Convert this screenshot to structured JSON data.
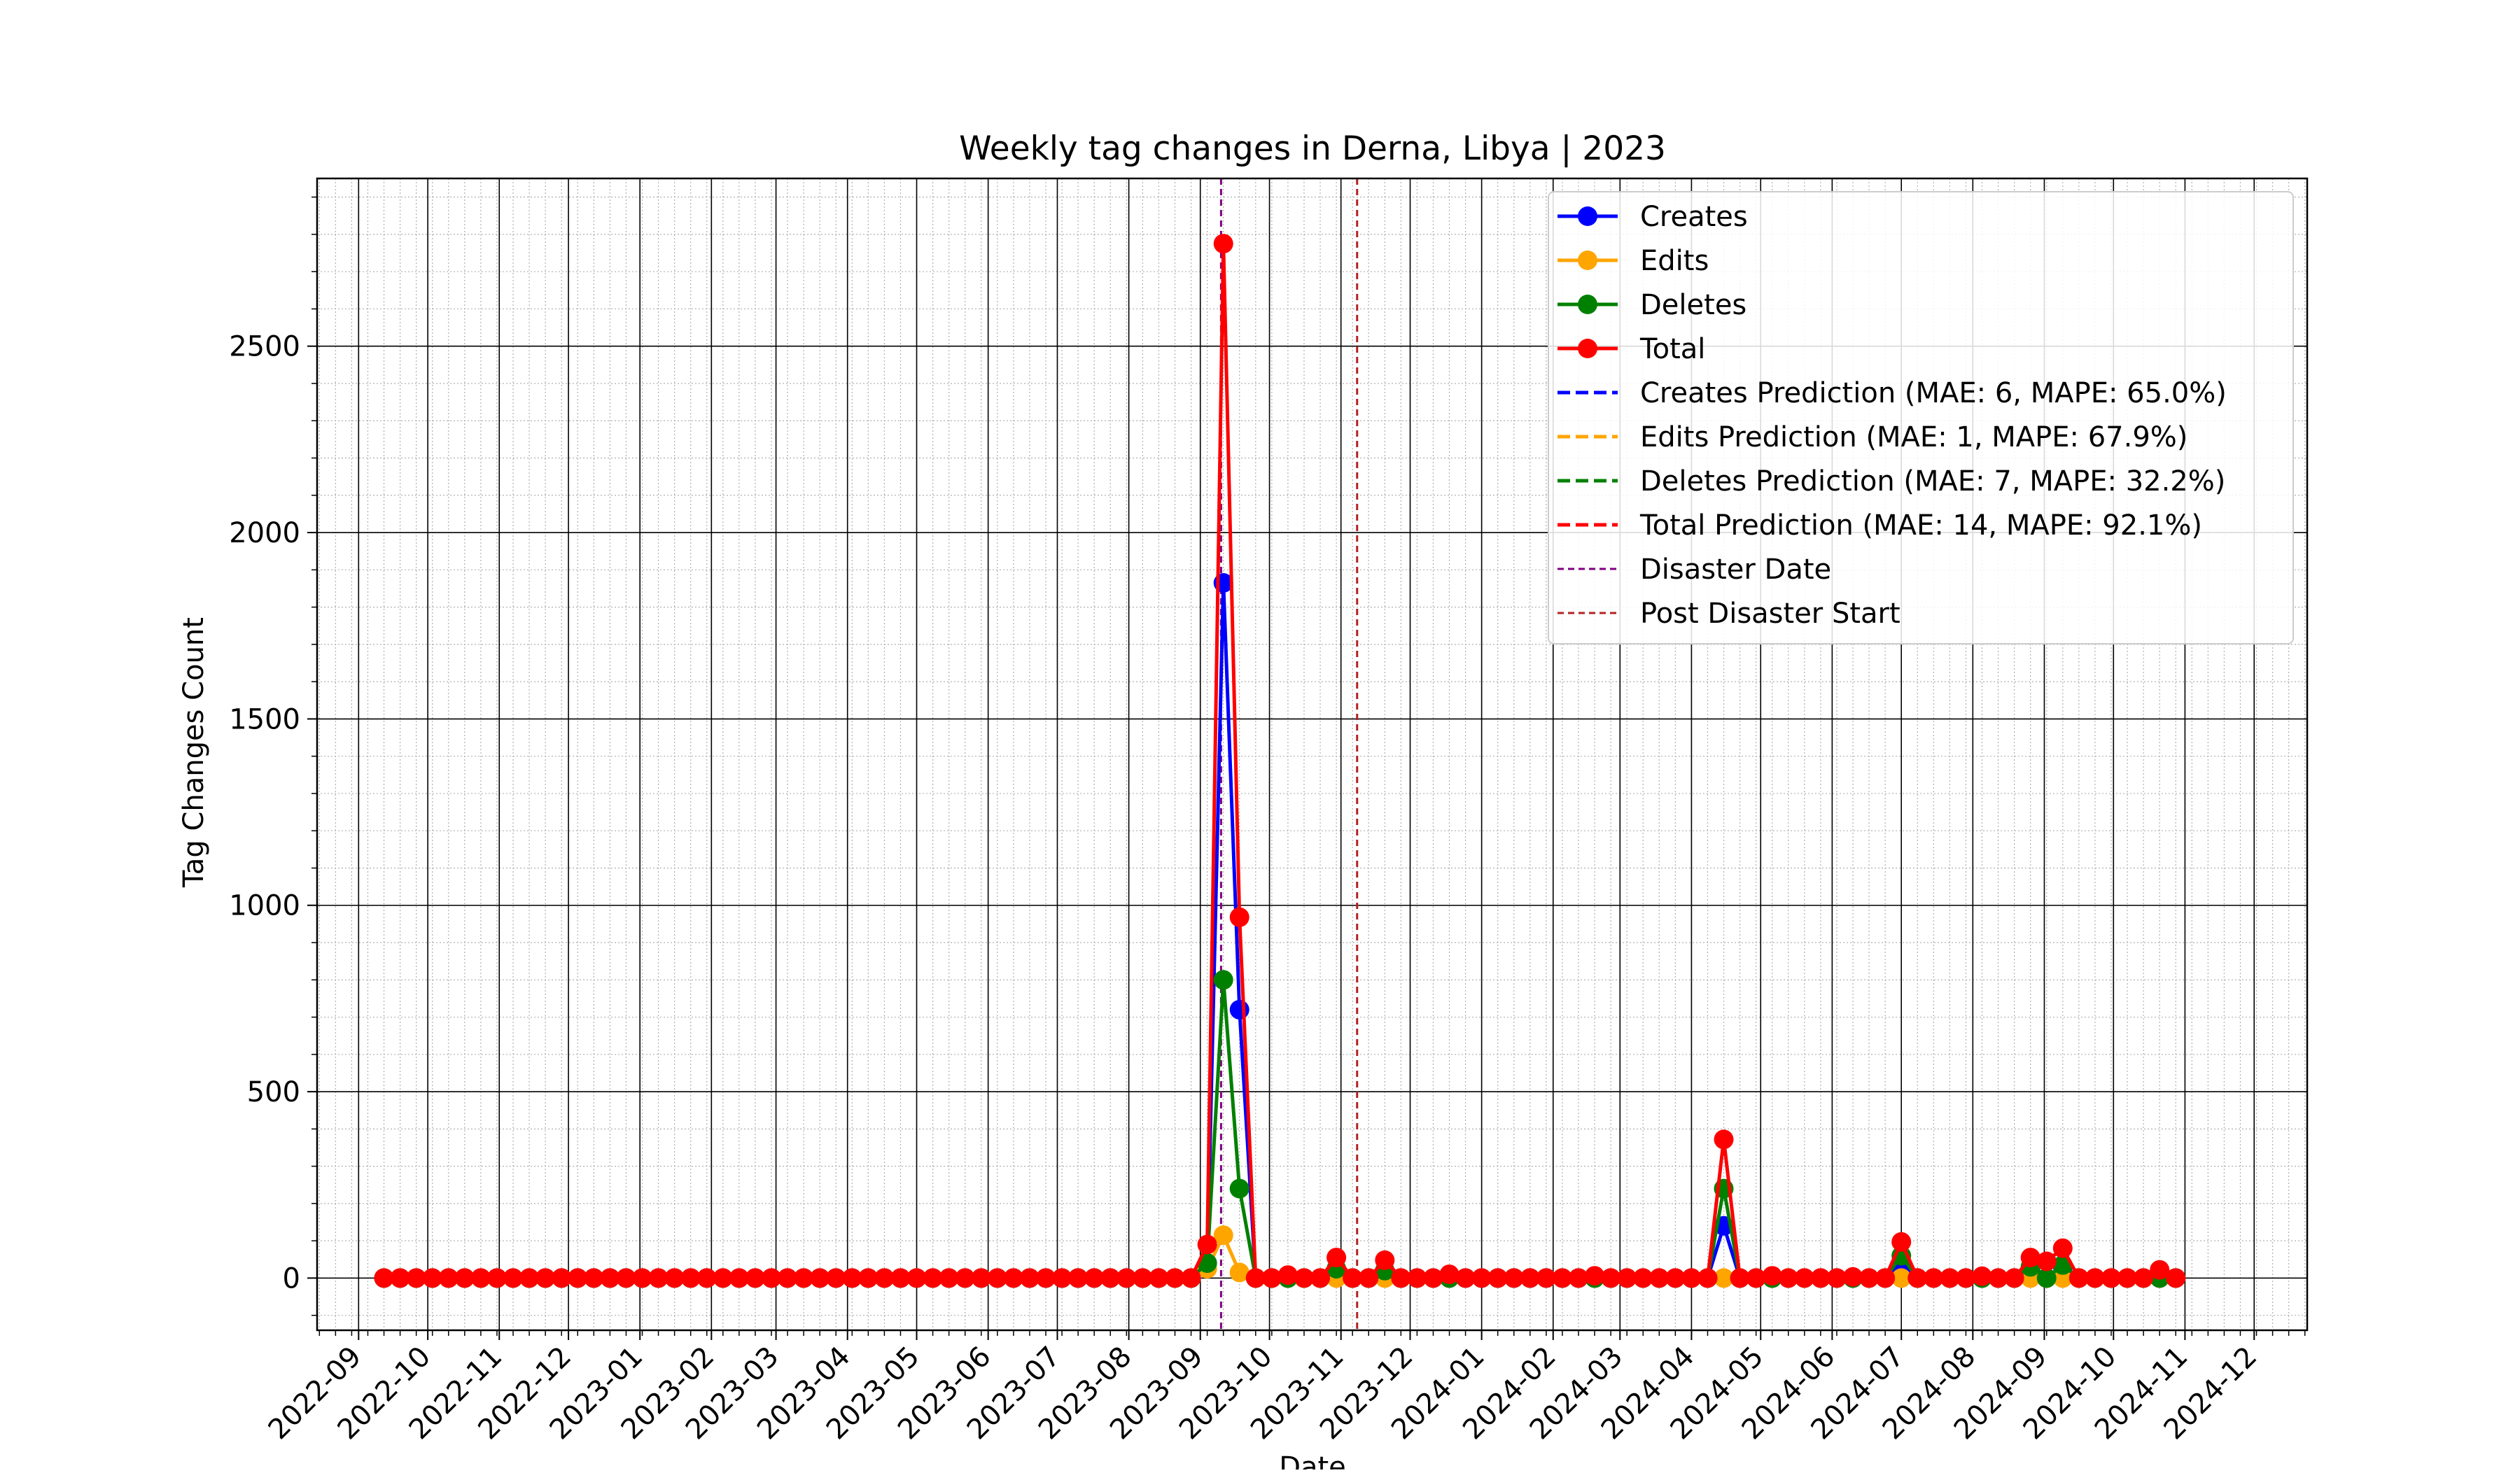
{
  "chart_data": {
    "type": "line",
    "title": "Weekly tag changes in Derna, Libya | 2023",
    "xlabel": "Date",
    "ylabel": "Tag Changes Count",
    "x_axis_type": "date",
    "xlim": [
      "2022-08-14",
      "2024-12-24"
    ],
    "ylim": [
      -140,
      2950
    ],
    "grid": "major and minor",
    "legend_position": "top-right",
    "x_tick_labels": [
      "2022-09",
      "2022-10",
      "2022-11",
      "2022-12",
      "2023-01",
      "2023-02",
      "2023-03",
      "2023-04",
      "2023-05",
      "2023-06",
      "2023-07",
      "2023-08",
      "2023-09",
      "2023-10",
      "2023-11",
      "2023-12",
      "2024-01",
      "2024-02",
      "2024-03",
      "2024-04",
      "2024-05",
      "2024-06",
      "2024-07",
      "2024-08",
      "2024-09",
      "2024-10",
      "2024-11",
      "2024-12"
    ],
    "y_ticks": [
      0,
      500,
      1000,
      1500,
      2000,
      2500
    ],
    "week_range": {
      "first": "2022-09-12",
      "last": "2024-10-28"
    },
    "series": [
      {
        "name": "Creates",
        "color": "#0000ff",
        "default": 0,
        "points": [
          [
            "2023-09-04",
            40
          ],
          [
            "2023-09-11",
            1865
          ],
          [
            "2023-09-18",
            720
          ],
          [
            "2023-10-30",
            20
          ],
          [
            "2023-11-20",
            20
          ],
          [
            "2024-04-15",
            140
          ],
          [
            "2024-07-01",
            40
          ],
          [
            "2024-08-26",
            20
          ],
          [
            "2024-09-09",
            30
          ]
        ]
      },
      {
        "name": "Edits",
        "color": "#ffa500",
        "default": 0,
        "points": [
          [
            "2023-09-04",
            25
          ],
          [
            "2023-09-11",
            115
          ],
          [
            "2023-09-18",
            15
          ]
        ]
      },
      {
        "name": "Deletes",
        "color": "#008000",
        "default": 0,
        "points": [
          [
            "2023-09-04",
            40
          ],
          [
            "2023-09-11",
            800
          ],
          [
            "2023-09-18",
            240
          ],
          [
            "2023-10-30",
            25
          ],
          [
            "2023-11-20",
            20
          ],
          [
            "2024-04-15",
            240
          ],
          [
            "2024-07-01",
            60
          ],
          [
            "2024-08-26",
            30
          ],
          [
            "2024-09-09",
            35
          ]
        ]
      },
      {
        "name": "Total",
        "color": "#ff0000",
        "default": 0,
        "points": [
          [
            "2023-09-04",
            90
          ],
          [
            "2023-09-11",
            2775
          ],
          [
            "2023-09-18",
            968
          ],
          [
            "2023-10-09",
            8
          ],
          [
            "2023-10-30",
            55
          ],
          [
            "2023-11-20",
            48
          ],
          [
            "2023-12-18",
            10
          ],
          [
            "2024-02-19",
            6
          ],
          [
            "2024-04-15",
            372
          ],
          [
            "2024-05-06",
            6
          ],
          [
            "2024-06-10",
            3
          ],
          [
            "2024-07-01",
            97
          ],
          [
            "2024-08-05",
            5
          ],
          [
            "2024-08-26",
            55
          ],
          [
            "2024-09-02",
            45
          ],
          [
            "2024-09-09",
            80
          ],
          [
            "2024-10-21",
            22
          ]
        ]
      }
    ],
    "vertical_lines": [
      {
        "name": "Disaster Date",
        "date": "2023-09-10",
        "color": "#800080",
        "style": "dashed"
      },
      {
        "name": "Post Disaster Start",
        "date": "2023-11-08",
        "color": "#b22222",
        "style": "dashed"
      }
    ],
    "legend": [
      {
        "label": "Creates",
        "color": "#0000ff",
        "style": "solid-marker"
      },
      {
        "label": "Edits",
        "color": "#ffa500",
        "style": "solid-marker"
      },
      {
        "label": "Deletes",
        "color": "#008000",
        "style": "solid-marker"
      },
      {
        "label": "Total",
        "color": "#ff0000",
        "style": "solid-marker"
      },
      {
        "label": "Creates Prediction (MAE: 6, MAPE: 65.0%)",
        "color": "#0000ff",
        "style": "dashed"
      },
      {
        "label": "Edits Prediction (MAE: 1, MAPE: 67.9%)",
        "color": "#ffa500",
        "style": "dashed"
      },
      {
        "label": "Deletes Prediction (MAE: 7, MAPE: 32.2%)",
        "color": "#008000",
        "style": "dashed"
      },
      {
        "label": "Total Prediction (MAE: 14, MAPE: 92.1%)",
        "color": "#ff0000",
        "style": "dashed"
      },
      {
        "label": "Disaster Date",
        "color": "#800080",
        "style": "thin-dashed"
      },
      {
        "label": "Post Disaster Start",
        "color": "#b22222",
        "style": "thin-dashed"
      }
    ]
  }
}
